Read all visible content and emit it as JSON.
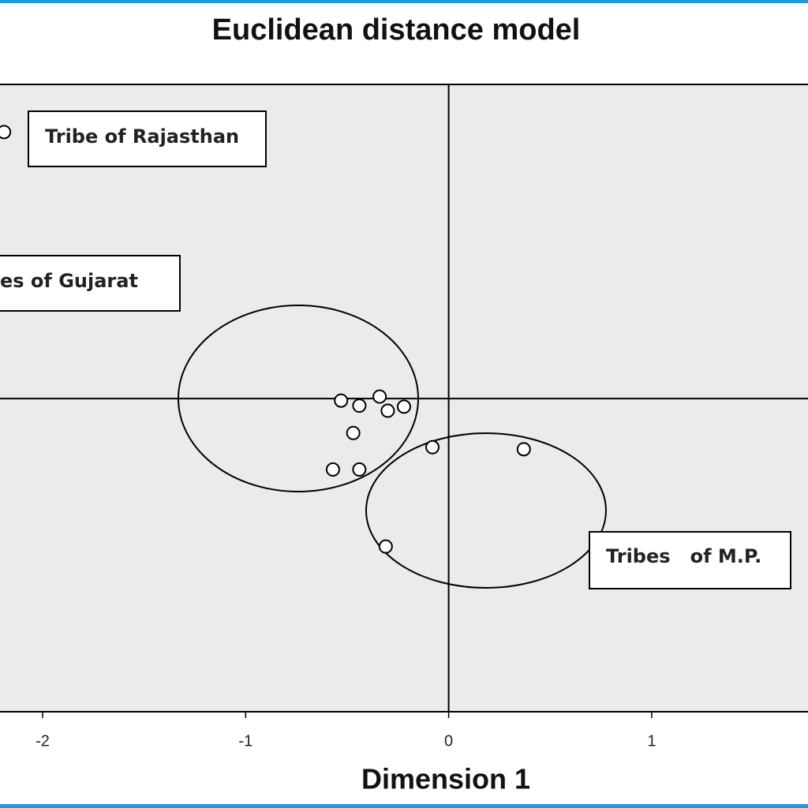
{
  "chart_data": {
    "type": "scatter",
    "title": "Euclidean distance model",
    "x_label": "Dimension 1",
    "x": [
      -2.19,
      -0.53,
      -0.44,
      -0.34,
      -0.3,
      -0.22,
      -0.47,
      -0.57,
      -0.44,
      -0.08,
      0.37,
      -0.31
    ],
    "values": [
      1.315,
      -0.01,
      -0.035,
      0.01,
      -0.06,
      -0.04,
      -0.17,
      -0.35,
      -0.35,
      -0.24,
      -0.25,
      -0.73
    ],
    "xlim": [
      -2.21,
      1.77
    ],
    "ylim": [
      -1.545,
      1.55
    ],
    "xticks": [
      -2,
      -1,
      0,
      1
    ],
    "annotations": [
      "Tribe of Rajasthan",
      "es of Gujarat",
      "Tribes   of M.P."
    ]
  }
}
